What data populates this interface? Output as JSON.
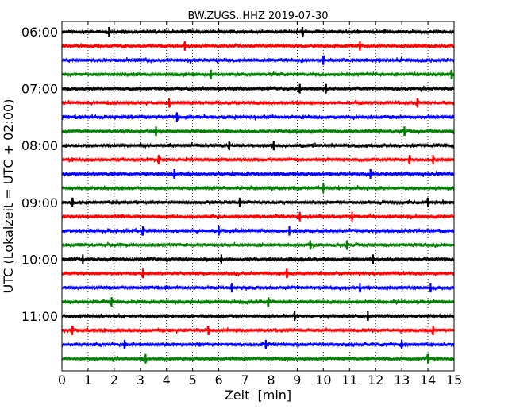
{
  "chart_data": {
    "type": "line",
    "title": "BW.ZUGS..HHZ 2019-07-30",
    "xlabel": "Zeit  [min]",
    "ylabel": "UTC (Lokalzeit = UTC + 02:00)",
    "xlim": [
      0,
      15
    ],
    "x_ticks": [
      "0",
      "1",
      "2",
      "3",
      "4",
      "5",
      "6",
      "7",
      "8",
      "9",
      "10",
      "11",
      "12",
      "13",
      "14",
      "15"
    ],
    "y_tick_labels": [
      "06:00",
      "07:00",
      "08:00",
      "09:00",
      "10:00",
      "11:00"
    ],
    "grid": "vertical dotted",
    "trace_colors": [
      "#000000",
      "#ff0000",
      "#0000ff",
      "#008000"
    ],
    "series": [
      {
        "start": "06:00",
        "color": "#000000",
        "spikes": [
          1.8,
          9.2
        ]
      },
      {
        "start": "06:15",
        "color": "#ff0000",
        "spikes": [
          4.7,
          11.4
        ]
      },
      {
        "start": "06:30",
        "color": "#0000ff",
        "spikes": [
          10.0
        ]
      },
      {
        "start": "06:45",
        "color": "#008000",
        "spikes": [
          5.7,
          14.9
        ]
      },
      {
        "start": "07:00",
        "color": "#000000",
        "spikes": [
          9.1,
          10.1
        ]
      },
      {
        "start": "07:15",
        "color": "#ff0000",
        "spikes": [
          4.1,
          13.6
        ]
      },
      {
        "start": "07:30",
        "color": "#0000ff",
        "spikes": [
          4.4
        ]
      },
      {
        "start": "07:45",
        "color": "#008000",
        "spikes": [
          3.6,
          13.1
        ]
      },
      {
        "start": "08:00",
        "color": "#000000",
        "spikes": [
          6.4,
          8.1
        ]
      },
      {
        "start": "08:15",
        "color": "#ff0000",
        "spikes": [
          3.7,
          13.3,
          14.2
        ]
      },
      {
        "start": "08:30",
        "color": "#0000ff",
        "spikes": [
          4.3,
          11.8
        ]
      },
      {
        "start": "08:45",
        "color": "#008000",
        "spikes": [
          10.0
        ]
      },
      {
        "start": "09:00",
        "color": "#000000",
        "spikes": [
          0.4,
          6.8,
          14.0
        ]
      },
      {
        "start": "09:15",
        "color": "#ff0000",
        "spikes": [
          9.1,
          11.1
        ]
      },
      {
        "start": "09:30",
        "color": "#0000ff",
        "spikes": [
          3.1,
          6.0,
          8.7
        ]
      },
      {
        "start": "09:45",
        "color": "#008000",
        "spikes": [
          9.5,
          10.9
        ]
      },
      {
        "start": "10:00",
        "color": "#000000",
        "spikes": [
          0.8,
          6.1,
          11.9
        ]
      },
      {
        "start": "10:15",
        "color": "#ff0000",
        "spikes": [
          3.1,
          8.6
        ]
      },
      {
        "start": "10:30",
        "color": "#0000ff",
        "spikes": [
          6.5,
          11.4,
          14.1
        ]
      },
      {
        "start": "10:45",
        "color": "#008000",
        "spikes": [
          1.9,
          7.9
        ]
      },
      {
        "start": "11:00",
        "color": "#000000",
        "spikes": [
          8.9,
          11.7
        ]
      },
      {
        "start": "11:15",
        "color": "#ff0000",
        "spikes": [
          0.4,
          5.6,
          14.2
        ]
      },
      {
        "start": "11:30",
        "color": "#0000ff",
        "spikes": [
          2.4,
          7.8,
          13.0
        ]
      },
      {
        "start": "11:45",
        "color": "#008000",
        "spikes": [
          3.2,
          14.0
        ]
      }
    ]
  }
}
